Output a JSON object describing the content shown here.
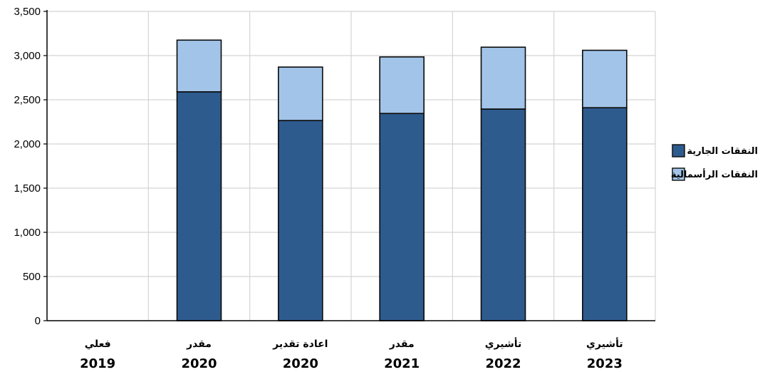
{
  "chart_data": {
    "type": "bar",
    "stacked": true,
    "categories": [
      {
        "line1": "فعلي",
        "line2": "2019"
      },
      {
        "line1": "مقدر",
        "line2": "2020"
      },
      {
        "line1": "اعادة تقدير",
        "line2": "2020"
      },
      {
        "line1": "مقدر",
        "line2": "2021"
      },
      {
        "line1": "تأشيري",
        "line2": "2022"
      },
      {
        "line1": "تأشيري",
        "line2": "2023"
      }
    ],
    "series": [
      {
        "name": "النفقات الجارية",
        "color": "#2e5b8e",
        "values": [
          null,
          2590,
          2265,
          2345,
          2395,
          2410
        ]
      },
      {
        "name": "النفقات الرأسمالية",
        "color": "#a2c4e8",
        "values": [
          null,
          585,
          605,
          640,
          700,
          650
        ]
      }
    ],
    "ylim": [
      0,
      3500
    ],
    "yticks": [
      0,
      500,
      1000,
      1500,
      2000,
      2500,
      3000,
      3500
    ],
    "ytick_labels": [
      "0",
      "500",
      "1,000",
      "1,500",
      "2,000",
      "2,500",
      "3,000",
      "3,500"
    ],
    "grid": true,
    "legend_position": "right",
    "title": "",
    "xlabel": "",
    "ylabel": ""
  }
}
